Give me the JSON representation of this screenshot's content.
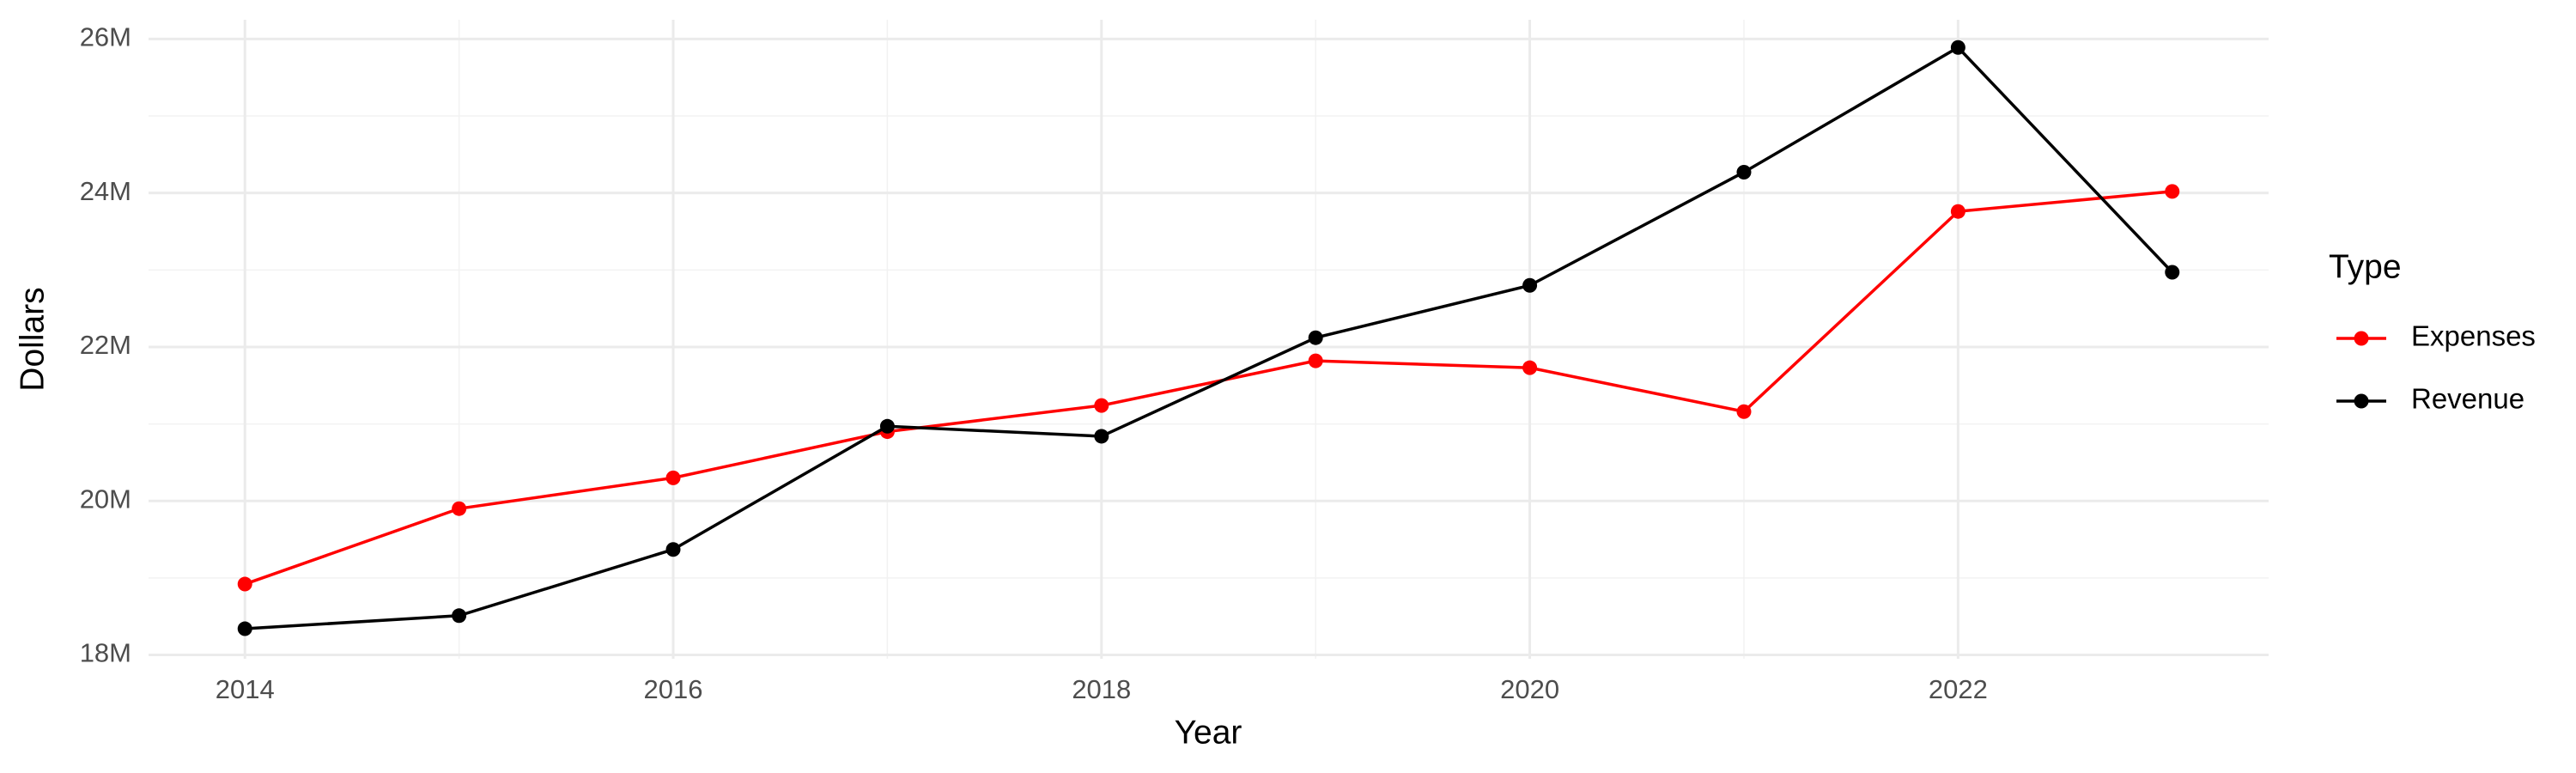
{
  "chart_data": {
    "type": "line",
    "x_label": "Year",
    "y_label": "Dollars",
    "legend_title": "Type",
    "x": [
      2014,
      2015,
      2016,
      2017,
      2018,
      2019,
      2020,
      2021,
      2022,
      2023
    ],
    "series": [
      {
        "name": "Expenses",
        "color": "#ff0000",
        "values": [
          18920000,
          19900000,
          20300000,
          20900000,
          21240000,
          21820000,
          21730000,
          21160000,
          23760000,
          24020000
        ]
      },
      {
        "name": "Revenue",
        "color": "#000000",
        "values": [
          18340000,
          18510000,
          19370000,
          20970000,
          20840000,
          22120000,
          22800000,
          24270000,
          25890000,
          22970000
        ]
      }
    ],
    "xlim": [
      2013.55,
      2023.45
    ],
    "xticks": [
      2014,
      2016,
      2018,
      2020,
      2022
    ],
    "ylim": [
      17950000,
      26250000
    ],
    "yticks": [
      {
        "value": 18000000,
        "label": "18M"
      },
      {
        "value": 20000000,
        "label": "20M"
      },
      {
        "value": 22000000,
        "label": "22M"
      },
      {
        "value": 24000000,
        "label": "24M"
      },
      {
        "value": 26000000,
        "label": "26M"
      }
    ],
    "grid": true,
    "legend": "right"
  }
}
